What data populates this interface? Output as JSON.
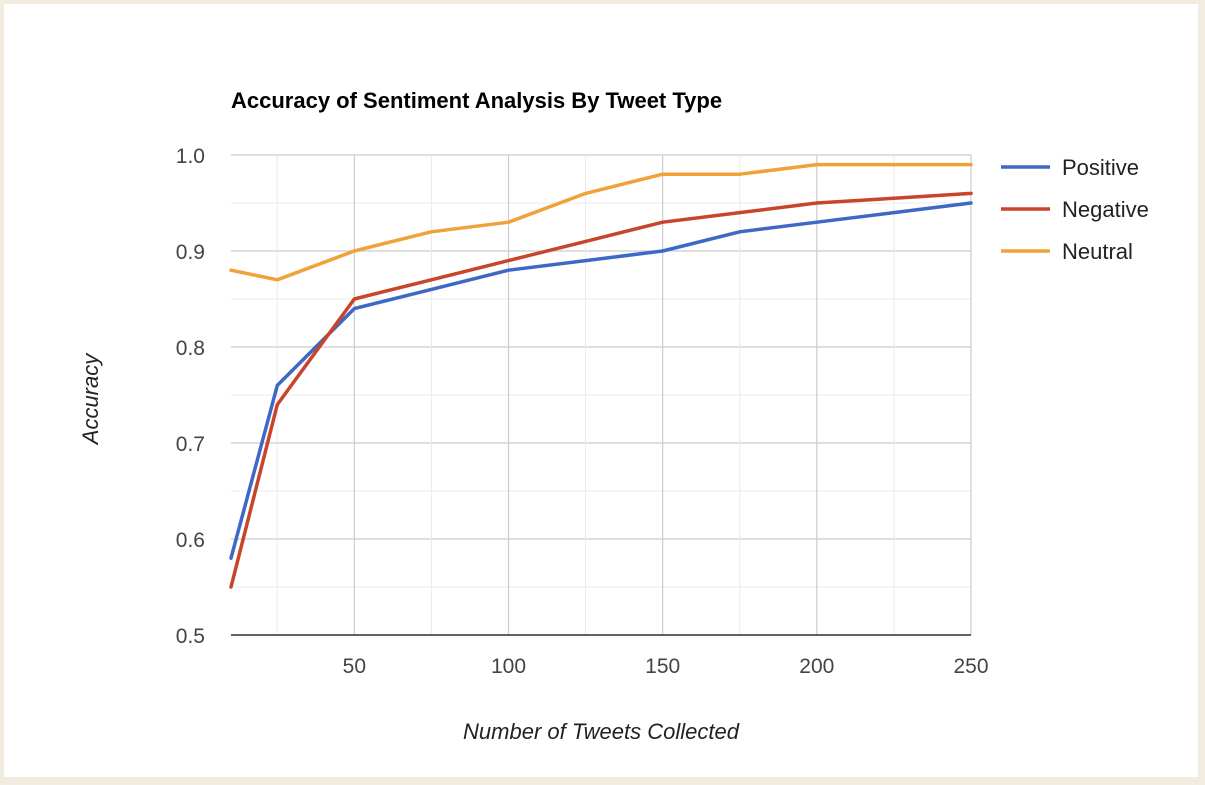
{
  "chart_data": {
    "type": "line",
    "title": "Accuracy of Sentiment Analysis By Tweet Type",
    "xlabel": "Number of Tweets Collected",
    "ylabel": "Accuracy",
    "xlim": [
      10,
      250
    ],
    "ylim": [
      0.5,
      1.0
    ],
    "x_ticks": [
      50,
      100,
      150,
      200,
      250
    ],
    "y_ticks": [
      "0.5",
      "0.6",
      "0.7",
      "0.8",
      "0.9",
      "1.0"
    ],
    "grid": true,
    "legend_position": "right",
    "x": [
      10,
      25,
      50,
      75,
      100,
      125,
      150,
      175,
      200,
      225,
      250
    ],
    "series": [
      {
        "name": "Positive",
        "color": "#3d68c5",
        "values": [
          0.58,
          0.76,
          0.84,
          0.86,
          0.88,
          0.89,
          0.9,
          0.92,
          0.93,
          0.94,
          0.95
        ]
      },
      {
        "name": "Negative",
        "color": "#c8442a",
        "values": [
          0.55,
          0.74,
          0.85,
          0.87,
          0.89,
          0.91,
          0.93,
          0.94,
          0.95,
          0.955,
          0.96
        ]
      },
      {
        "name": "Neutral",
        "color": "#f0a23a",
        "values": [
          0.88,
          0.87,
          0.9,
          0.92,
          0.93,
          0.96,
          0.98,
          0.98,
          0.99,
          0.99,
          0.99
        ]
      }
    ]
  }
}
